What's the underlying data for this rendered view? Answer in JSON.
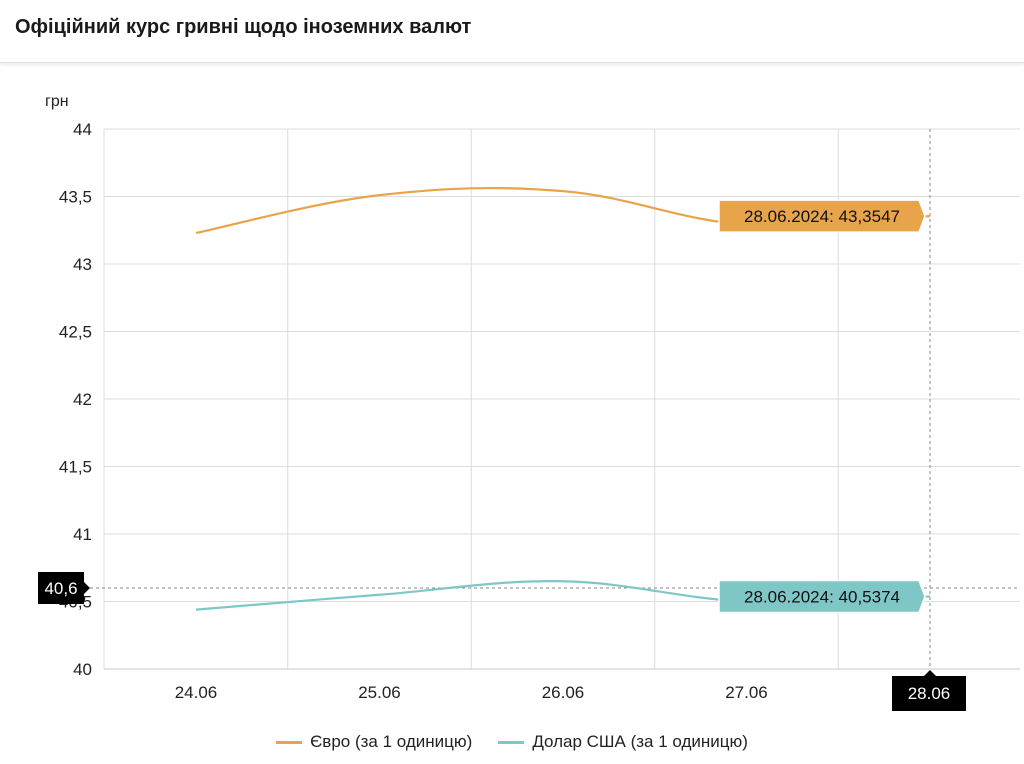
{
  "header": {
    "title": "Офіційний курс гривні щодо іноземних валют"
  },
  "chart_data": {
    "type": "line",
    "title": "",
    "ylabel": "грн",
    "xlabel": "",
    "categories": [
      "24.06",
      "25.06",
      "26.06",
      "27.06",
      "28.06"
    ],
    "ylim": [
      40,
      44
    ],
    "yticks": [
      "40",
      "40,5",
      "41",
      "41,5",
      "42",
      "42,5",
      "43",
      "43,5",
      "44"
    ],
    "grid": true,
    "legend_position": "bottom",
    "series": [
      {
        "name": "Євро (за 1 одиницю)",
        "color": "#e8a44a",
        "values": [
          43.23,
          43.51,
          43.54,
          43.29,
          43.3547
        ],
        "tooltip": "28.06.2024: 43,3547"
      },
      {
        "name": "Долар США (за 1 одиницю)",
        "color": "#7fc7c7",
        "values": [
          40.44,
          40.55,
          40.65,
          40.5,
          40.5374
        ],
        "tooltip": "28.06.2024: 40,5374"
      }
    ],
    "crosshair": {
      "x_label": "28.06",
      "y_label": "40,6",
      "y_value": 40.6
    }
  }
}
